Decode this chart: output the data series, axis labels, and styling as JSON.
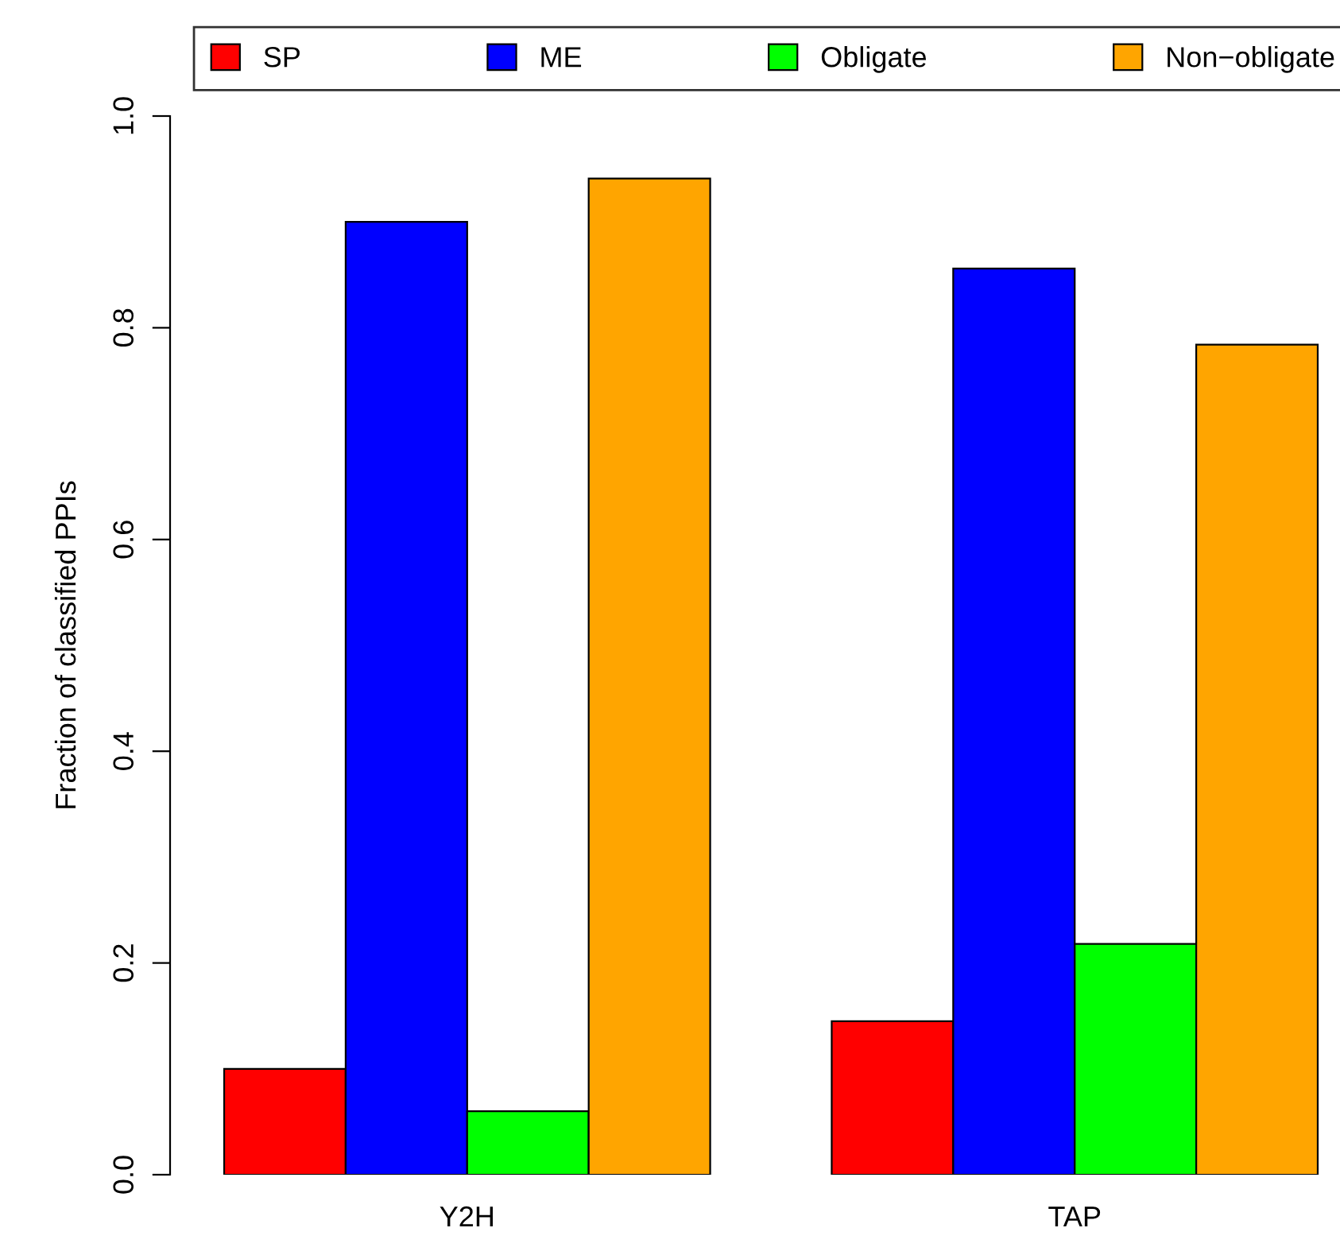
{
  "chart_data": {
    "type": "bar",
    "ylabel": "Fraction of classified PPIs",
    "categories": [
      "Y2H",
      "TAP"
    ],
    "series": [
      {
        "name": "SP",
        "color": "#ff0000",
        "values": [
          0.1,
          0.145
        ]
      },
      {
        "name": "ME",
        "color": "#0000ff",
        "values": [
          0.9,
          0.856
        ]
      },
      {
        "name": "Obligate",
        "color": "#00ff00",
        "values": [
          0.06,
          0.218
        ]
      },
      {
        "name": "Non−obligate",
        "color": "#ffa500",
        "values": [
          0.941,
          0.784
        ]
      }
    ],
    "ylim": [
      0,
      1
    ],
    "yticks": [
      {
        "value": 0,
        "label": "0.0"
      },
      0.2,
      0.4,
      0.6,
      0.8,
      {
        "value": 1,
        "label": "1.0"
      }
    ],
    "grid": false,
    "legend": "top"
  }
}
